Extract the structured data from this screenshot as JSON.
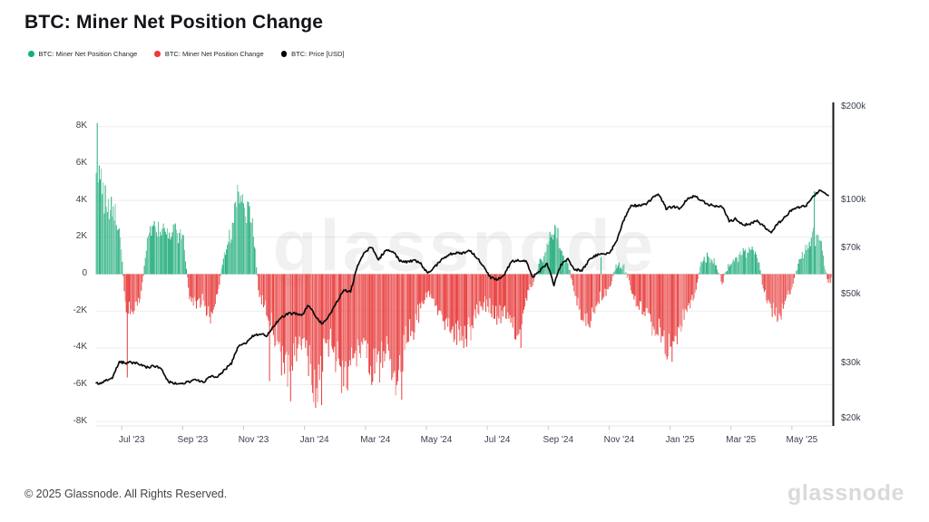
{
  "page": {
    "title": "BTC: Miner Net Position Change"
  },
  "legend": [
    {
      "label": "BTC: Miner Net Position Change",
      "color": "#10b176"
    },
    {
      "label": "BTC: Miner Net Position Change",
      "color": "#ee3b3b"
    },
    {
      "label": "BTC: Price [USD]",
      "color": "#000000"
    }
  ],
  "watermark": "glassnode",
  "footer": {
    "copyright": "© 2025 Glassnode. All Rights Reserved.",
    "logo": "glassnode"
  },
  "chart_data": {
    "type": "bar+line",
    "title": "BTC: Miner Net Position Change",
    "legend_position": "top-left",
    "grid": "horizontal-light",
    "x_axis": {
      "tick_labels": [
        "Jul '23",
        "Sep '23",
        "Nov '23",
        "Jan '24",
        "Mar '24",
        "May '24",
        "Jul '24",
        "Sep '24",
        "Nov '24",
        "Jan '25",
        "Mar '25",
        "May '25"
      ],
      "span": "Jun 2023 – Jun 2025"
    },
    "left_axis": {
      "tick_labels": [
        "8K",
        "6K",
        "4K",
        "2K",
        "0",
        "-2K",
        "-4K",
        "-6K",
        "-8K"
      ],
      "tick_values_kbtc": [
        8,
        6,
        4,
        2,
        0,
        -2,
        -4,
        -6,
        -8
      ],
      "range_kbtc": [
        -8,
        8
      ],
      "scale": "linear"
    },
    "right_axis": {
      "tick_labels": [
        "$200k",
        "$100k",
        "$70k",
        "$50k",
        "$30k",
        "$20k"
      ],
      "tick_values_kusd": [
        200,
        100,
        70,
        50,
        30,
        20
      ],
      "range_kusd": [
        20,
        200
      ],
      "scale": "log"
    },
    "series": [
      {
        "name": "BTC: Miner Net Position Change (accumulation)",
        "type": "bar",
        "color": "#2fb283"
      },
      {
        "name": "BTC: Miner Net Position Change (distribution)",
        "type": "bar",
        "color": "#e94444"
      },
      {
        "name": "BTC: Price [USD]",
        "type": "line",
        "color": "#0b0b0b"
      }
    ],
    "x_unit": "weeks since Jun 2023 (weekly anchor points, rendered as daily bars)",
    "miner_net_position_weekly_kbtc": [
      6.2,
      5.2,
      4.1,
      3.4,
      2.6,
      -2.2,
      -1.8,
      -1.5,
      1.8,
      2.6,
      2.2,
      2.3,
      2.4,
      2.2,
      -1.2,
      -1.6,
      -1.4,
      -2.4,
      -1.0,
      1.2,
      2.2,
      4.4,
      3.6,
      2.8,
      -1.2,
      -1.8,
      -3.0,
      -4.6,
      -5.8,
      -4.2,
      -3.6,
      -4.8,
      -6.4,
      -4.6,
      -3.6,
      -4.4,
      -5.6,
      -4.4,
      -4.6,
      -3.8,
      -5.0,
      -5.2,
      -4.2,
      -5.6,
      -5.2,
      -3.2,
      -2.8,
      -1.8,
      -1.0,
      -1.4,
      -2.2,
      -2.8,
      -3.2,
      -3.5,
      -3.0,
      -2.0,
      -1.6,
      -1.8,
      -2.4,
      -2.0,
      -2.6,
      -3.4,
      -1.2,
      -0.6,
      0.6,
      1.4,
      2.4,
      1.4,
      0.5,
      -1.0,
      -2.2,
      -2.6,
      -1.6,
      -1.2,
      -0.6,
      0.5,
      0.4,
      -0.8,
      -1.6,
      -2.2,
      -2.8,
      -3.2,
      -4.0,
      -4.3,
      -3.0,
      -2.0,
      -1.2,
      0.6,
      0.9,
      0.7,
      -0.4,
      0.5,
      0.9,
      1.2,
      1.4,
      1.1,
      -1.0,
      -1.8,
      -2.3,
      -1.5,
      -0.8,
      0.8,
      1.4,
      2.2,
      1.8,
      -0.3
    ],
    "spikes_week_kbtc": [
      [
        0.9,
        8.2
      ],
      [
        5.2,
        -5.6
      ],
      [
        25.4,
        -5.8
      ],
      [
        27.1,
        -5.5
      ],
      [
        28.4,
        -6.9
      ],
      [
        32.0,
        -7.25
      ],
      [
        32.9,
        -7.1
      ],
      [
        36.5,
        -6.3
      ],
      [
        44.3,
        -6.8
      ],
      [
        61.3,
        -4.0
      ],
      [
        66.6,
        2.5
      ],
      [
        72.7,
        0.9
      ],
      [
        103.1,
        4.5
      ]
    ],
    "price_weekly_kusd": [
      27.1,
      25.8,
      26.4,
      26.9,
      30.4,
      30.2,
      30.3,
      29.8,
      29.2,
      29.5,
      29.1,
      26.2,
      26.0,
      25.9,
      26.3,
      26.6,
      26.2,
      27.4,
      27.2,
      28.6,
      30.1,
      34.3,
      34.9,
      36.7,
      37.4,
      37.0,
      39.6,
      41.9,
      43.4,
      43.6,
      42.7,
      46.3,
      42.5,
      40.1,
      43.0,
      47.2,
      51.7,
      51.2,
      61.6,
      68.4,
      71.3,
      64.6,
      69.7,
      69.1,
      64.3,
      63.7,
      64.4,
      62.7,
      58.3,
      61.4,
      64.8,
      67.1,
      68.2,
      67.7,
      69.3,
      65.9,
      61.2,
      56.6,
      55.9,
      58.4,
      64.0,
      64.5,
      64.0,
      56.8,
      59.8,
      62.8,
      53.8,
      62.5,
      64.8,
      60.2,
      59.6,
      64.3,
      66.8,
      67.2,
      68.4,
      74.8,
      87.3,
      96.8,
      96.2,
      97.3,
      101.8,
      104.7,
      94.5,
      95.8,
      94.3,
      101.4,
      103.8,
      100.2,
      97.3,
      96.1,
      95.7,
      85.8,
      87.6,
      83.4,
      84.5,
      86.3,
      82.6,
      78.9,
      84.7,
      88.8,
      94.1,
      95.3,
      96.9,
      103.4,
      108.3,
      104.2
    ]
  }
}
